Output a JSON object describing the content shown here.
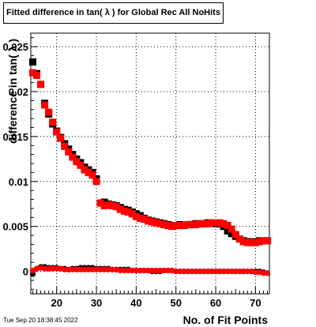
{
  "title": "Fitted difference in tan( λ ) for Global Rec All NoHits",
  "timestamp": "Tue Sep 20 18:38:45 2022",
  "chart_data": {
    "type": "scatter",
    "title": "Fitted difference in tan( λ ) for Global Rec All NoHits",
    "xlabel": "No. of Fit Points",
    "ylabel": "difference in tan( λ )",
    "xlim": [
      13.5,
      73.5
    ],
    "ylim": [
      -0.0025,
      0.0265
    ],
    "xticks": [
      20,
      30,
      40,
      50,
      60,
      70
    ],
    "yticks": [
      0,
      0.005,
      0.01,
      0.015,
      0.02,
      0.025
    ],
    "xtick_labels": [
      "20",
      "30",
      "40",
      "50",
      "60",
      "70"
    ],
    "ytick_labels": [
      "0",
      "0.005",
      "0.01",
      "0.015",
      "0.02",
      "0.025"
    ],
    "grid": true,
    "series": [
      {
        "color": "#000000",
        "marker": "square",
        "x": [
          14,
          15,
          16,
          17,
          18,
          19,
          20,
          21,
          22,
          23,
          24,
          25,
          26,
          27,
          28,
          29,
          30,
          31,
          32,
          33,
          34,
          35,
          36,
          37,
          38,
          39,
          40,
          41,
          42,
          43,
          44,
          45,
          46,
          47,
          48,
          49,
          50,
          51,
          52,
          53,
          54,
          55,
          56,
          57,
          58,
          59,
          60,
          61,
          62,
          63,
          64,
          65,
          66,
          67,
          68,
          69,
          70,
          71,
          72,
          73
        ],
        "y": [
          0.0233,
          0.022,
          0.0208,
          0.0187,
          0.0175,
          0.0164,
          0.0156,
          0.0149,
          0.0142,
          0.0136,
          0.013,
          0.0125,
          0.0121,
          0.0116,
          0.0113,
          0.011,
          0.0103,
          0.0076,
          0.0077,
          0.0075,
          0.0074,
          0.0073,
          0.0071,
          0.0069,
          0.0068,
          0.0066,
          0.0064,
          0.0062,
          0.0059,
          0.0057,
          0.0056,
          0.0055,
          0.0054,
          0.0053,
          0.0052,
          0.0051,
          0.0051,
          0.0052,
          0.0051,
          0.0052,
          0.0052,
          0.0053,
          0.0053,
          0.0053,
          0.0054,
          0.0054,
          0.0053,
          0.0053,
          0.005,
          0.0045,
          0.0042,
          0.0039,
          0.0036,
          0.0034,
          0.0033,
          0.0033,
          0.0033,
          0.0034,
          0.0034,
          0.0034
        ]
      },
      {
        "color": "#ff0000",
        "marker": "square",
        "x": [
          14,
          15,
          16,
          17,
          18,
          19,
          20,
          21,
          22,
          23,
          24,
          25,
          26,
          27,
          28,
          29,
          30,
          31,
          32,
          33,
          34,
          35,
          36,
          37,
          38,
          39,
          40,
          41,
          42,
          43,
          44,
          45,
          46,
          47,
          48,
          49,
          50,
          51,
          52,
          53,
          54,
          55,
          56,
          57,
          58,
          59,
          60,
          61,
          62,
          63,
          64,
          65,
          66,
          67,
          68,
          69,
          70,
          71,
          72,
          73
        ],
        "y": [
          0.0221,
          0.0218,
          0.0208,
          0.0185,
          0.0177,
          0.0166,
          0.0155,
          0.0148,
          0.0139,
          0.0133,
          0.0127,
          0.0122,
          0.0118,
          0.0113,
          0.011,
          0.0107,
          0.01,
          0.0076,
          0.0073,
          0.0074,
          0.0073,
          0.0072,
          0.0069,
          0.0067,
          0.0066,
          0.0064,
          0.0061,
          0.0059,
          0.0058,
          0.0056,
          0.0055,
          0.0054,
          0.0053,
          0.0052,
          0.0051,
          0.005,
          0.0051,
          0.0051,
          0.0051,
          0.0052,
          0.0052,
          0.0052,
          0.0053,
          0.0053,
          0.0053,
          0.0054,
          0.0054,
          0.0054,
          0.0053,
          0.0051,
          0.0047,
          0.0041,
          0.0036,
          0.0033,
          0.0032,
          0.0032,
          0.0032,
          0.0033,
          0.0034,
          0.0034
        ]
      },
      {
        "color": "#000000",
        "marker": "circle",
        "x": [
          14,
          15,
          16,
          17,
          18,
          19,
          20,
          21,
          22,
          23,
          24,
          25,
          26,
          27,
          28,
          29,
          30,
          31,
          32,
          33,
          34,
          35,
          36,
          37,
          38,
          39,
          40,
          41,
          42,
          43,
          44,
          45,
          46,
          47,
          48,
          49,
          50,
          51,
          52,
          53,
          54,
          55,
          56,
          57,
          58,
          59,
          60,
          61,
          62,
          63,
          64,
          65,
          66,
          67,
          68,
          69,
          70,
          71,
          72,
          73
        ],
        "y": [
          -0.0003,
          0.0003,
          0.0005,
          0.0005,
          0.0004,
          0.0004,
          0.0004,
          0.0003,
          0.0003,
          0.0002,
          0.0003,
          0.0003,
          0.0004,
          0.0004,
          0.0004,
          0.0004,
          0.0003,
          0.0003,
          0.0003,
          0.0003,
          0.0002,
          0.0002,
          0.0002,
          0.0002,
          0.0002,
          0.0001,
          0.0001,
          0.0001,
          0.0001,
          0.0001,
          0.0,
          0.0,
          0.0,
          0.0001,
          0.0001,
          0.0001,
          0.0,
          0.0,
          0.0,
          0.0,
          0.0,
          0.0,
          0.0,
          0.0,
          0.0,
          0.0,
          0.0,
          0.0,
          0.0,
          0.0,
          0.0,
          0.0,
          0.0,
          0.0,
          0.0,
          0.0,
          0.0,
          0.0,
          -0.0001,
          -0.0002
        ]
      },
      {
        "color": "#ff0000",
        "marker": "circle",
        "x": [
          14,
          15,
          16,
          17,
          18,
          19,
          20,
          21,
          22,
          23,
          24,
          25,
          26,
          27,
          28,
          29,
          30,
          31,
          32,
          33,
          34,
          35,
          36,
          37,
          38,
          39,
          40,
          41,
          42,
          43,
          44,
          45,
          46,
          47,
          48,
          49,
          50,
          51,
          52,
          53,
          54,
          55,
          56,
          57,
          58,
          59,
          60,
          61,
          62,
          63,
          64,
          65,
          66,
          67,
          68,
          69,
          70,
          71,
          72,
          73
        ],
        "y": [
          0.0001,
          0.0003,
          0.0004,
          0.0003,
          0.0003,
          0.0003,
          0.0003,
          0.0003,
          0.0002,
          0.0002,
          0.0002,
          0.0002,
          0.0002,
          0.0002,
          0.0002,
          0.0002,
          0.0002,
          0.0002,
          0.0002,
          0.0002,
          0.0002,
          0.0002,
          0.0001,
          0.0001,
          0.0001,
          0.0001,
          0.0001,
          0.0001,
          0.0001,
          0.0001,
          0.0001,
          0.0001,
          0.0001,
          0.0001,
          0.0001,
          0.0001,
          0.0,
          0.0,
          0.0,
          0.0,
          0.0,
          0.0,
          0.0,
          0.0,
          0.0,
          0.0,
          0.0,
          0.0,
          0.0,
          0.0,
          0.0,
          0.0,
          0.0,
          0.0,
          0.0,
          0.0,
          -0.0001,
          -0.0001,
          -0.0002,
          -0.0002
        ]
      }
    ]
  }
}
